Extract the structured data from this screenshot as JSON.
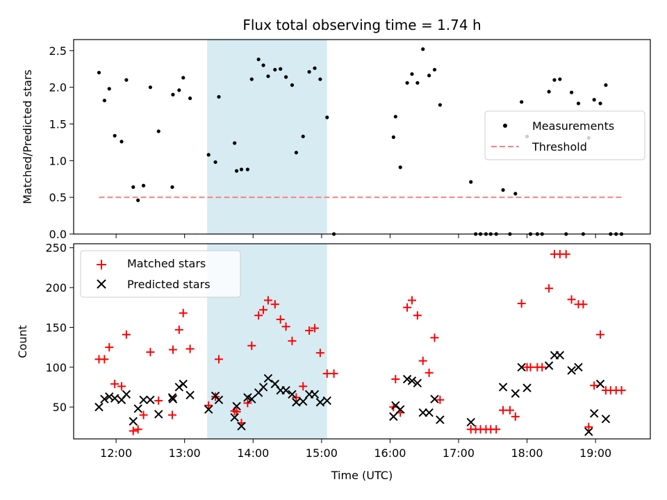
{
  "chart_data": {
    "type": "scatter",
    "title": "Flux total observing time = 1.74 h",
    "xlabel": "Time (UTC)",
    "x_unit": "hours UTC",
    "x_ticks": [
      {
        "value": 12,
        "label": "12:00"
      },
      {
        "value": 13,
        "label": "13:00"
      },
      {
        "value": 14,
        "label": "14:00"
      },
      {
        "value": 15,
        "label": "15:00"
      },
      {
        "value": 16,
        "label": "16:00"
      },
      {
        "value": 17,
        "label": "17:00"
      },
      {
        "value": 18,
        "label": "18:00"
      },
      {
        "value": 19,
        "label": "19:00"
      }
    ],
    "xlim": [
      11.38,
      19.8
    ],
    "shaded_span": [
      13.33,
      15.08
    ],
    "colors": {
      "shade": "#add8e6",
      "measurement": "#000000",
      "threshold": "#ff7f7f",
      "matched": "#ff0000",
      "predicted": "#000000"
    },
    "panels": [
      {
        "ylabel": "Matched/Predicted stars",
        "ylim": [
          0,
          2.65
        ],
        "yticks": [
          {
            "value": 0,
            "label": "0.0"
          },
          {
            "value": 0.5,
            "label": "0.5"
          },
          {
            "value": 1.0,
            "label": "1.0"
          },
          {
            "value": 1.5,
            "label": "1.5"
          },
          {
            "value": 2.0,
            "label": "2.0"
          },
          {
            "value": 2.5,
            "label": "2.5"
          }
        ],
        "legend_position": "center-right",
        "legend": [
          {
            "label": "Measurements",
            "marker": "dot"
          },
          {
            "label": "Threshold",
            "marker": "dashed-line"
          }
        ],
        "threshold": {
          "value": 0.5,
          "x_range": [
            11.75,
            19.42
          ]
        },
        "series": [
          {
            "name": "Measurements",
            "marker": "dot",
            "points": [
              [
                11.75,
                2.2
              ],
              [
                11.83,
                1.82
              ],
              [
                11.9,
                1.98
              ],
              [
                11.98,
                1.34
              ],
              [
                12.08,
                1.26
              ],
              [
                12.15,
                2.1
              ],
              [
                12.25,
                0.64
              ],
              [
                12.32,
                0.46
              ],
              [
                12.4,
                0.66
              ],
              [
                12.5,
                2.0
              ],
              [
                12.62,
                1.4
              ],
              [
                12.82,
                0.64
              ],
              [
                12.83,
                1.9
              ],
              [
                12.92,
                1.96
              ],
              [
                12.98,
                2.13
              ],
              [
                13.08,
                1.85
              ],
              [
                13.35,
                1.08
              ],
              [
                13.45,
                0.98
              ],
              [
                13.5,
                1.87
              ],
              [
                13.73,
                1.24
              ],
              [
                13.76,
                0.86
              ],
              [
                13.83,
                0.88
              ],
              [
                13.92,
                0.88
              ],
              [
                13.98,
                2.11
              ],
              [
                14.08,
                2.38
              ],
              [
                14.15,
                2.3
              ],
              [
                14.22,
                2.15
              ],
              [
                14.32,
                2.24
              ],
              [
                14.4,
                2.25
              ],
              [
                14.48,
                2.14
              ],
              [
                14.57,
                2.03
              ],
              [
                14.63,
                1.11
              ],
              [
                14.73,
                1.33
              ],
              [
                14.82,
                2.21
              ],
              [
                14.9,
                2.26
              ],
              [
                14.98,
                2.11
              ],
              [
                15.08,
                1.59
              ],
              [
                15.18,
                0.0
              ],
              [
                16.05,
                1.32
              ],
              [
                16.08,
                1.6
              ],
              [
                16.15,
                0.91
              ],
              [
                16.25,
                2.06
              ],
              [
                16.32,
                2.18
              ],
              [
                16.4,
                2.06
              ],
              [
                16.48,
                2.52
              ],
              [
                16.57,
                2.16
              ],
              [
                16.65,
                2.24
              ],
              [
                16.73,
                1.76
              ],
              [
                17.18,
                0.71
              ],
              [
                17.25,
                0.0
              ],
              [
                17.32,
                0.0
              ],
              [
                17.4,
                0.0
              ],
              [
                17.47,
                0.0
              ],
              [
                17.55,
                0.0
              ],
              [
                17.65,
                0.6
              ],
              [
                17.75,
                0.0
              ],
              [
                17.83,
                0.55
              ],
              [
                17.92,
                1.8
              ],
              [
                18.0,
                1.33
              ],
              [
                18.05,
                0.0
              ],
              [
                18.15,
                0.0
              ],
              [
                18.22,
                0.0
              ],
              [
                18.32,
                1.94
              ],
              [
                18.4,
                2.1
              ],
              [
                18.48,
                2.11
              ],
              [
                18.57,
                0.0
              ],
              [
                18.65,
                1.93
              ],
              [
                18.75,
                1.78
              ],
              [
                18.82,
                0.0
              ],
              [
                18.9,
                1.31
              ],
              [
                18.98,
                1.83
              ],
              [
                19.07,
                1.78
              ],
              [
                19.15,
                2.03
              ],
              [
                19.22,
                0.0
              ],
              [
                19.3,
                0.0
              ],
              [
                19.38,
                0.0
              ]
            ]
          }
        ]
      },
      {
        "ylabel": "Count",
        "ylim": [
          10,
          255
        ],
        "yticks": [
          {
            "value": 50,
            "label": "50"
          },
          {
            "value": 100,
            "label": "100"
          },
          {
            "value": 150,
            "label": "150"
          },
          {
            "value": 200,
            "label": "200"
          },
          {
            "value": 250,
            "label": "250"
          }
        ],
        "legend_position": "upper-left",
        "legend": [
          {
            "label": "Matched stars",
            "marker": "plus"
          },
          {
            "label": "Predicted stars",
            "marker": "cross"
          }
        ],
        "series": [
          {
            "name": "Matched stars",
            "marker": "plus",
            "points": [
              [
                11.75,
                110
              ],
              [
                11.83,
                110
              ],
              [
                11.9,
                125
              ],
              [
                11.98,
                79
              ],
              [
                12.08,
                76
              ],
              [
                12.15,
                141
              ],
              [
                12.25,
                20
              ],
              [
                12.32,
                22
              ],
              [
                12.4,
                40
              ],
              [
                12.5,
                119
              ],
              [
                12.62,
                58
              ],
              [
                12.82,
                40
              ],
              [
                12.83,
                122
              ],
              [
                12.92,
                147
              ],
              [
                12.98,
                168
              ],
              [
                13.08,
                123
              ],
              [
                13.35,
                52
              ],
              [
                13.45,
                63
              ],
              [
                13.5,
                110
              ],
              [
                13.73,
                45
              ],
              [
                13.76,
                44
              ],
              [
                13.83,
                30
              ],
              [
                13.92,
                55
              ],
              [
                13.98,
                127
              ],
              [
                14.08,
                165
              ],
              [
                14.15,
                172
              ],
              [
                14.22,
                184
              ],
              [
                14.32,
                179
              ],
              [
                14.4,
                160
              ],
              [
                14.48,
                151
              ],
              [
                14.57,
                133
              ],
              [
                14.63,
                62
              ],
              [
                14.73,
                76
              ],
              [
                14.82,
                146
              ],
              [
                14.9,
                149
              ],
              [
                14.98,
                118
              ],
              [
                15.08,
                92
              ],
              [
                15.18,
                92
              ],
              [
                16.05,
                50
              ],
              [
                16.08,
                85
              ],
              [
                16.15,
                43
              ],
              [
                16.25,
                175
              ],
              [
                16.32,
                184
              ],
              [
                16.4,
                165
              ],
              [
                16.48,
                108
              ],
              [
                16.57,
                93
              ],
              [
                16.65,
                137
              ],
              [
                16.73,
                59
              ],
              [
                17.18,
                22
              ],
              [
                17.25,
                22
              ],
              [
                17.32,
                22
              ],
              [
                17.4,
                22
              ],
              [
                17.47,
                22
              ],
              [
                17.55,
                22
              ],
              [
                17.65,
                46
              ],
              [
                17.75,
                46
              ],
              [
                17.83,
                38
              ],
              [
                17.92,
                180
              ],
              [
                18.0,
                100
              ],
              [
                18.05,
                100
              ],
              [
                18.15,
                100
              ],
              [
                18.22,
                100
              ],
              [
                18.32,
                199
              ],
              [
                18.4,
                242
              ],
              [
                18.48,
                242
              ],
              [
                18.57,
                242
              ],
              [
                18.65,
                185
              ],
              [
                18.75,
                179
              ],
              [
                18.82,
                179
              ],
              [
                18.9,
                25
              ],
              [
                18.98,
                77
              ],
              [
                19.07,
                141
              ],
              [
                19.15,
                71
              ],
              [
                19.22,
                71
              ],
              [
                19.3,
                71
              ],
              [
                19.38,
                71
              ]
            ]
          },
          {
            "name": "Predicted stars",
            "marker": "cross",
            "points": [
              [
                11.75,
                50
              ],
              [
                11.83,
                60
              ],
              [
                11.9,
                63
              ],
              [
                11.98,
                61
              ],
              [
                12.08,
                59
              ],
              [
                12.15,
                66
              ],
              [
                12.25,
                32
              ],
              [
                12.32,
                48
              ],
              [
                12.4,
                59
              ],
              [
                12.5,
                59
              ],
              [
                12.62,
                41
              ],
              [
                12.82,
                62
              ],
              [
                12.83,
                60
              ],
              [
                12.92,
                75
              ],
              [
                12.98,
                79
              ],
              [
                13.08,
                65
              ],
              [
                13.35,
                47
              ],
              [
                13.45,
                64
              ],
              [
                13.5,
                59
              ],
              [
                13.73,
                37
              ],
              [
                13.76,
                51
              ],
              [
                13.83,
                26
              ],
              [
                13.92,
                62
              ],
              [
                13.98,
                60
              ],
              [
                14.08,
                68
              ],
              [
                14.15,
                75
              ],
              [
                14.22,
                86
              ],
              [
                14.32,
                79
              ],
              [
                14.4,
                71
              ],
              [
                14.48,
                71
              ],
              [
                14.57,
                66
              ],
              [
                14.63,
                56
              ],
              [
                14.73,
                57
              ],
              [
                14.82,
                66
              ],
              [
                14.9,
                66
              ],
              [
                14.98,
                56
              ],
              [
                15.08,
                58
              ],
              [
                16.05,
                38
              ],
              [
                16.08,
                52
              ],
              [
                16.15,
                47
              ],
              [
                16.25,
                85
              ],
              [
                16.32,
                83
              ],
              [
                16.4,
                80
              ],
              [
                16.48,
                43
              ],
              [
                16.57,
                43
              ],
              [
                16.65,
                60
              ],
              [
                16.73,
                34
              ],
              [
                17.18,
                31
              ],
              [
                17.65,
                75
              ],
              [
                17.83,
                67
              ],
              [
                17.92,
                100
              ],
              [
                18.0,
                74
              ],
              [
                18.32,
                102
              ],
              [
                18.4,
                115
              ],
              [
                18.48,
                115
              ],
              [
                18.65,
                96
              ],
              [
                18.75,
                100
              ],
              [
                18.9,
                19
              ],
              [
                18.98,
                42
              ],
              [
                19.07,
                79
              ],
              [
                19.15,
                35
              ]
            ]
          }
        ]
      }
    ]
  }
}
